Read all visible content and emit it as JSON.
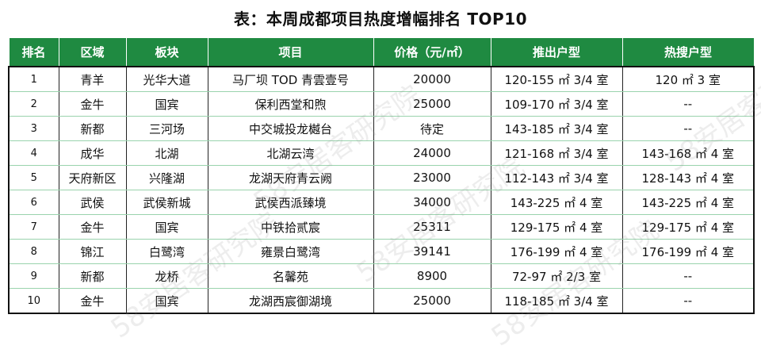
{
  "title": "表：本周成都项目热度增幅排名 TOP10",
  "watermark": "58安居客研究院",
  "columns": [
    "排名",
    "区域",
    "板块",
    "项目",
    "价格（元/㎡）",
    "推出户型",
    "热搜户型"
  ],
  "rows": [
    [
      "1",
      "青羊",
      "光华大道",
      "马厂坝 TOD 青雲壹号",
      "20000",
      "120-155 ㎡ 3/4 室",
      "120 ㎡  3 室"
    ],
    [
      "2",
      "金牛",
      "国宾",
      "保利西堂和煦",
      "25000",
      "109-170 ㎡ 3/4 室",
      "--"
    ],
    [
      "3",
      "新都",
      "三河场",
      "中交城投龙樾台",
      "待定",
      "143-185 ㎡ 3/4 室",
      "--"
    ],
    [
      "4",
      "成华",
      "北湖",
      "北湖云湾",
      "24000",
      "121-168 ㎡ 3/4 室",
      "143-168 ㎡ 4 室"
    ],
    [
      "5",
      "天府新区",
      "兴隆湖",
      "龙湖天府青云阙",
      "23000",
      "112-143 ㎡ 3/4 室",
      "128-143 ㎡ 4 室"
    ],
    [
      "6",
      "武侯",
      "武侯新城",
      "武侯西派臻境",
      "34000",
      "143-225 ㎡ 4 室",
      "143-225 ㎡ 4 室"
    ],
    [
      "7",
      "金牛",
      "国宾",
      "中铁拾贰宸",
      "25311",
      "129-175 ㎡ 4 室",
      "129-175 ㎡ 4 室"
    ],
    [
      "8",
      "锦江",
      "白鹭湾",
      "雍景白鹭湾",
      "39141",
      "176-199 ㎡ 4 室",
      "176-199 ㎡ 4 室"
    ],
    [
      "9",
      "新都",
      "龙桥",
      "名馨苑",
      "8900",
      "72-97 ㎡ 2/3 室",
      "--"
    ],
    [
      "10",
      "金牛",
      "国宾",
      "龙湖西宸御湖境",
      "25000",
      "118-185 ㎡ 3/4 室",
      "--"
    ]
  ],
  "colors": {
    "header_bg": "#1f8a41",
    "header_text": "#ffffff",
    "row_divider": "#9ad3ad"
  }
}
